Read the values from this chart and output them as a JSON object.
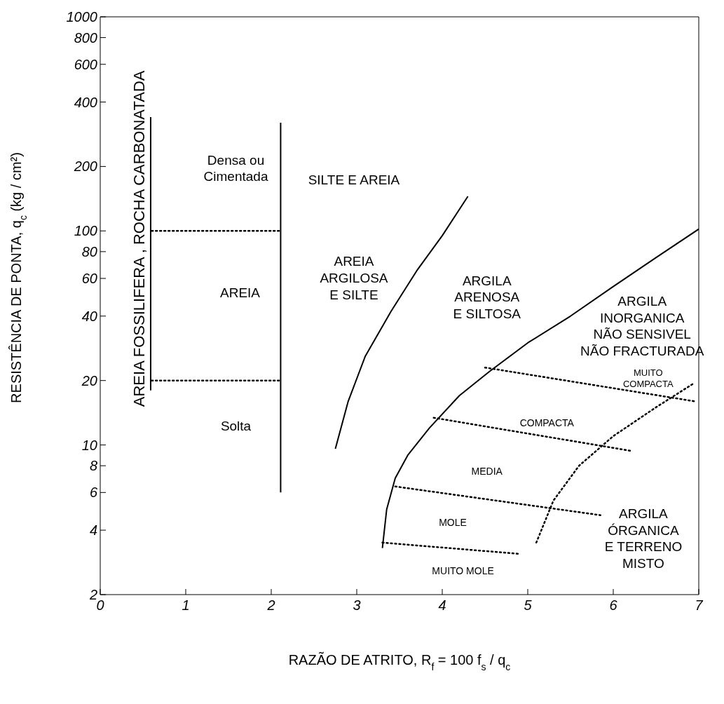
{
  "chart_data": {
    "type": "line",
    "xlabel": "RAZÃO DE ATRITO, R$_{f}$ = 100 f$_{s}$ / q$_{c}$",
    "ylabel": "RESISTÊNCIA DE PONTA, q$_{c}$  (kg / cm²)",
    "log": "y",
    "xlim": [
      0,
      7
    ],
    "xticks": [
      0,
      1,
      2,
      3,
      4,
      5,
      6,
      7
    ],
    "ylim": [
      2,
      1000
    ],
    "yticks": [
      2,
      4,
      6,
      8,
      10,
      20,
      40,
      60,
      80,
      100,
      200,
      400,
      600,
      800,
      1000
    ],
    "grid": false,
    "marker": "none",
    "series": [
      {
        "color": "#000000",
        "line_style": "solid",
        "x": [
          0.59,
          0.59
        ],
        "values": [
          18,
          340
        ]
      },
      {
        "color": "#000000",
        "line_style": "solid",
        "x": [
          2.11,
          2.11
        ],
        "values": [
          6,
          320
        ]
      },
      {
        "color": "#000000",
        "line_style": "dotted",
        "x": [
          0.6,
          2.1
        ],
        "values": [
          100,
          100
        ]
      },
      {
        "color": "#000000",
        "line_style": "dotted",
        "x": [
          0.6,
          2.1
        ],
        "values": [
          20,
          20
        ]
      },
      {
        "color": "#000000",
        "line_style": "solid",
        "x": [
          2.75,
          2.9,
          3.1,
          3.4,
          3.7,
          4.0,
          4.3
        ],
        "values": [
          9.6,
          16,
          26,
          42,
          65,
          95,
          145
        ]
      },
      {
        "color": "#000000",
        "line_style": "solid",
        "x": [
          3.3,
          3.35,
          3.45,
          3.6,
          3.85,
          4.2,
          4.55,
          5,
          5.5,
          6,
          6.5,
          7
        ],
        "values": [
          3.3,
          5,
          7,
          9,
          12,
          17,
          22,
          30,
          40,
          55,
          75,
          102
        ]
      },
      {
        "color": "#000000",
        "line_style": "dotted",
        "x": [
          4.5,
          6.95
        ],
        "values": [
          23,
          16
        ]
      },
      {
        "color": "#000000",
        "line_style": "dotted",
        "x": [
          3.9,
          6.2
        ],
        "values": [
          13.4,
          9.4
        ]
      },
      {
        "color": "#000000",
        "line_style": "dotted",
        "x": [
          3.45,
          5.85
        ],
        "values": [
          6.4,
          4.7
        ]
      },
      {
        "color": "#000000",
        "line_style": "dotted",
        "x": [
          3.3,
          4.9
        ],
        "values": [
          3.5,
          3.1
        ]
      },
      {
        "color": "#000000",
        "line_style": "dotted",
        "x": [
          5.1,
          5.3,
          5.6,
          6.0,
          6.5,
          6.95
        ],
        "values": [
          3.5,
          5.5,
          8,
          11,
          15,
          19.5
        ]
      }
    ],
    "annotations": [
      "AREIA FOSSILIFERA , ROCHA CARBONATADA",
      "Densa ou\nCimentada",
      "AREIA",
      "Solta",
      "SILTE E AREIA",
      "AREIA\nARGILOSA\nE SILTE",
      "ARGILA\nARENOSA\nE SILTOSA",
      "ARGILA\nINORGANICA\nNÃO SENSIVEL\nNÃO FRACTURADA",
      "MUITO\nCOMPACTA",
      "COMPACTA",
      "MEDIA",
      "MOLE",
      "MUITO MOLE",
      "ARGILA\nÓRGANICA\nE TERRENO\nMISTO"
    ]
  }
}
